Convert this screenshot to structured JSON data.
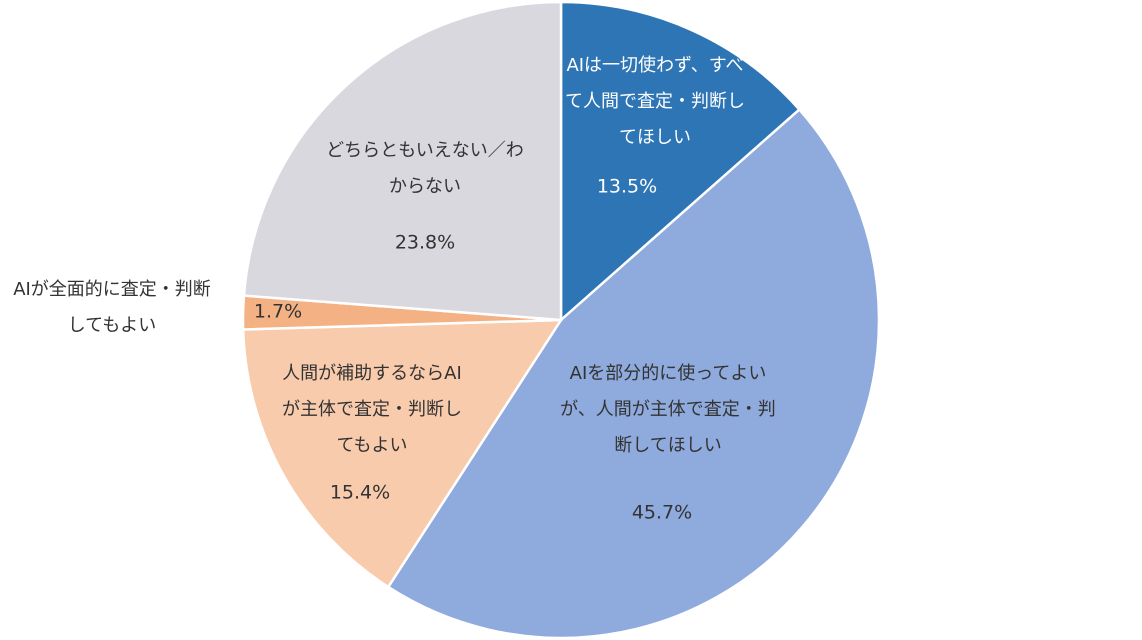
{
  "chart_data": {
    "type": "pie",
    "categories": [
      "AIは一切使わず、すべて人間で査定・判断してほしい",
      "AIを部分的に使ってよいが、人間が主体で査定・判断してほしい",
      "人間が補助するならAIが主体で査定・判断してもよい",
      "AIが全面的に査定・判断してもよい",
      "どちらともいえない／わからない"
    ],
    "values": [
      13.5,
      45.7,
      15.4,
      1.7,
      23.8
    ],
    "value_labels": [
      "13.5%",
      "45.7%",
      "15.4%",
      "1.7%",
      "23.8%"
    ],
    "colors": [
      "#2e75b6",
      "#8faadc",
      "#f8cbad",
      "#f4b183",
      "#d9d8de"
    ]
  }
}
